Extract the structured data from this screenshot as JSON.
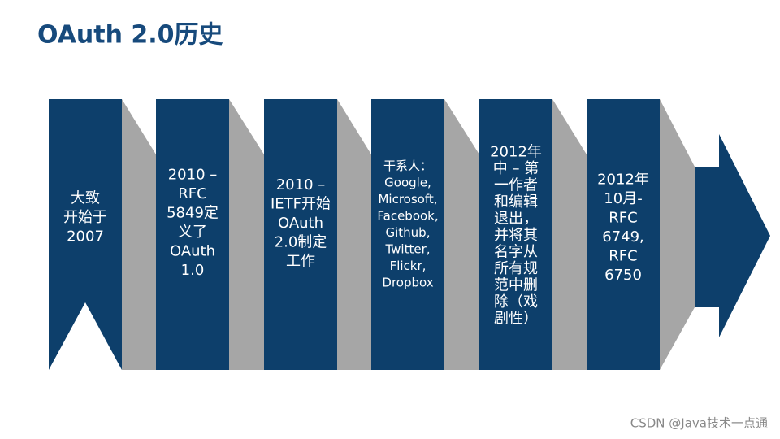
{
  "title": "OAuth 2.0历史",
  "steps": [
    {
      "lines": [
        "大致",
        "开始于",
        "2007"
      ]
    },
    {
      "lines": [
        "2010 –",
        "RFC",
        "5849定",
        "义了",
        "OAuth",
        "1.0"
      ]
    },
    {
      "lines": [
        "2010 –",
        "IETF开始",
        "OAuth",
        "2.0制定",
        "工作"
      ]
    },
    {
      "lines": [
        "干系人：",
        "Google,",
        "Microsoft,",
        "Facebook,",
        "Github,",
        "Twitter,",
        "Flickr,",
        "Dropbox"
      ]
    },
    {
      "lines": [
        "2012年",
        "中 – 第",
        "一作者",
        "和编辑",
        "退出，",
        "并将其",
        "名字从",
        "所有规",
        "范中删",
        "除（戏",
        "剧性）"
      ]
    },
    {
      "lines": [
        "2012年",
        "10月-",
        "RFC",
        "6749,",
        "RFC",
        "6750"
      ]
    }
  ],
  "watermark": "CSDN @Java技术一点通"
}
